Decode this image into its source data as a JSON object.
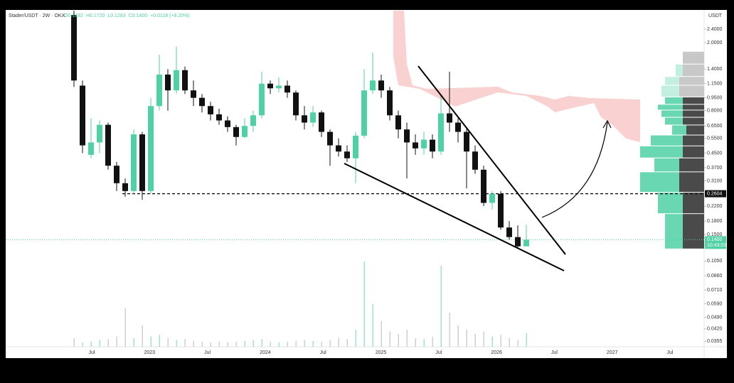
{
  "chart_data": {
    "type": "candlestick",
    "header": "Stader/USDT · 2W · OKX",
    "ohlc_text": [
      "O0.1282",
      "H0.1720",
      "L0.1283",
      "C0.1400",
      "+0.0118 (+9.20%)"
    ],
    "axis_unit": "USDT",
    "log_scale": true,
    "up_color": "#4fd1a5",
    "down_color": "#111111",
    "open": [
      2.9,
      1.12,
      0.44,
      0.52,
      0.66,
      0.38,
      0.3,
      0.27,
      0.58,
      0.27,
      0.85,
      1.3,
      1.05,
      1.38,
      1.05,
      0.95,
      0.85,
      0.76,
      0.7,
      0.64,
      0.56,
      0.65,
      0.75,
      1.15,
      1.08,
      1.12,
      1.02,
      0.75,
      0.68,
      0.78,
      0.6,
      0.5,
      0.46,
      0.42,
      0.57,
      1.05,
      1.2,
      1.05,
      0.75,
      0.62,
      0.52,
      0.48,
      0.54,
      0.46,
      0.77,
      0.68,
      0.6,
      0.46,
      0.36,
      0.23,
      0.26,
      0.165,
      0.145,
      0.128
    ],
    "high": [
      3.08,
      1.2,
      0.72,
      0.7,
      0.68,
      0.4,
      0.32,
      0.62,
      0.6,
      0.95,
      1.7,
      1.4,
      1.9,
      1.45,
      1.2,
      1.0,
      0.9,
      0.82,
      0.74,
      0.66,
      0.72,
      0.8,
      1.35,
      1.2,
      1.25,
      1.2,
      1.05,
      0.85,
      0.85,
      0.8,
      0.62,
      0.55,
      0.5,
      0.6,
      1.4,
      1.75,
      1.3,
      1.1,
      0.8,
      0.68,
      0.58,
      0.6,
      0.58,
      1.0,
      1.35,
      0.72,
      0.64,
      0.5,
      0.38,
      0.27,
      0.27,
      0.18,
      0.17,
      0.172
    ],
    "low": [
      1.1,
      0.45,
      0.42,
      0.45,
      0.36,
      0.27,
      0.25,
      0.26,
      0.24,
      0.26,
      0.8,
      0.8,
      1.0,
      1.0,
      0.85,
      0.78,
      0.7,
      0.66,
      0.6,
      0.5,
      0.55,
      0.6,
      0.72,
      1.0,
      1.02,
      0.95,
      0.7,
      0.62,
      0.64,
      0.56,
      0.38,
      0.43,
      0.4,
      0.3,
      0.55,
      1.0,
      0.95,
      0.7,
      0.55,
      0.32,
      0.44,
      0.44,
      0.42,
      0.44,
      0.6,
      0.52,
      0.28,
      0.34,
      0.22,
      0.21,
      0.16,
      0.14,
      0.125,
      0.1283
    ],
    "close": [
      1.2,
      0.5,
      0.52,
      0.66,
      0.38,
      0.3,
      0.27,
      0.58,
      0.27,
      0.85,
      1.3,
      1.05,
      1.38,
      1.05,
      0.95,
      0.85,
      0.76,
      0.7,
      0.64,
      0.56,
      0.65,
      0.75,
      1.15,
      1.08,
      1.12,
      1.02,
      0.75,
      0.68,
      0.78,
      0.6,
      0.5,
      0.46,
      0.42,
      0.57,
      1.05,
      1.2,
      1.05,
      0.75,
      0.62,
      0.52,
      0.48,
      0.54,
      0.46,
      0.77,
      0.68,
      0.6,
      0.46,
      0.36,
      0.23,
      0.26,
      0.165,
      0.145,
      0.128,
      0.14
    ],
    "volume": [
      10,
      5,
      6,
      8,
      9,
      12,
      45,
      10,
      25,
      12,
      14,
      10,
      8,
      9,
      7,
      6,
      5,
      6,
      5,
      6,
      7,
      8,
      9,
      6,
      5,
      6,
      7,
      8,
      7,
      6,
      8,
      10,
      9,
      20,
      100,
      50,
      30,
      18,
      15,
      20,
      10,
      9,
      12,
      95,
      40,
      25,
      20,
      15,
      18,
      12,
      14,
      10,
      8,
      16
    ],
    "x_labels": [
      "Jul",
      "2023",
      "Jul",
      "2024",
      "Jul",
      "2025",
      "Jul",
      "2026",
      "Jul",
      "2027",
      "Jul"
    ],
    "ylim": [
      0.033,
      3.08
    ],
    "yticks": [
      {
        "value": 2.4,
        "label": "2.4000"
      },
      {
        "value": 2.0,
        "label": "2.0000"
      },
      {
        "value": 1.4,
        "label": "1.4000"
      },
      {
        "value": 1.15,
        "label": "1.1500"
      },
      {
        "value": 0.95,
        "label": "0.9500"
      },
      {
        "value": 0.8,
        "label": "0.8000"
      },
      {
        "value": 0.65,
        "label": "0.6500"
      },
      {
        "value": 0.55,
        "label": "0.5500"
      },
      {
        "value": 0.45,
        "label": "0.4500"
      },
      {
        "value": 0.37,
        "label": "0.3700"
      },
      {
        "value": 0.31,
        "label": "0.3100"
      },
      {
        "value": 0.22,
        "label": "0.2200"
      },
      {
        "value": 0.18,
        "label": "0.1800"
      },
      {
        "value": 0.15,
        "label": "0.1500"
      },
      {
        "value": 0.105,
        "label": "0.1050"
      },
      {
        "value": 0.086,
        "label": "0.0860"
      },
      {
        "value": 0.071,
        "label": "0.0710"
      },
      {
        "value": 0.059,
        "label": "0.0590"
      },
      {
        "value": 0.049,
        "label": "0.0490"
      },
      {
        "value": 0.042,
        "label": "0.0420"
      },
      {
        "value": 0.0355,
        "label": "0.0355"
      }
    ],
    "level": {
      "value": 0.2604,
      "label": "0.2604"
    },
    "last_price": {
      "value": 0.14,
      "label": "0.1400"
    },
    "countdown": "10:43:03",
    "volume_profile": {
      "bins": [
        1.77,
        1.49,
        1.26,
        1.12,
        0.956,
        0.866,
        0.801,
        0.727,
        0.655,
        0.572,
        0.494,
        0.42,
        0.348,
        0.264,
        0.198,
        0.123
      ],
      "up": [
        0,
        10,
        20,
        25,
        25,
        35,
        30,
        25,
        20,
        45,
        60,
        35,
        55,
        35,
        25
      ],
      "down": [
        30,
        30,
        35,
        35,
        30,
        30,
        30,
        30,
        25,
        30,
        30,
        35,
        35,
        30,
        30
      ]
    }
  }
}
